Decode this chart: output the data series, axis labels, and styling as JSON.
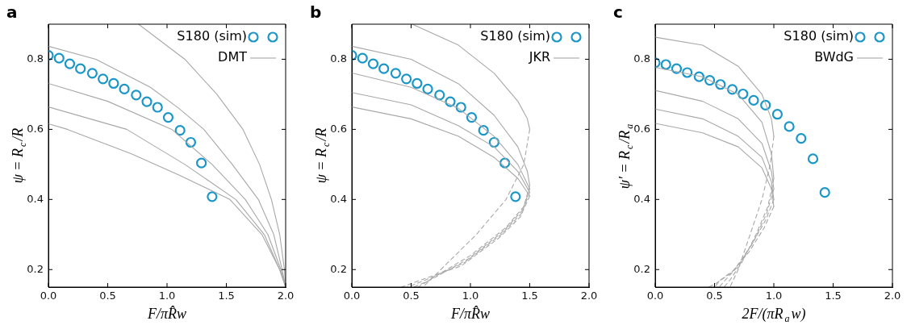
{
  "chart_data": [
    {
      "type": "line",
      "title": "a",
      "xlabel": "F/πR̂w",
      "ylabel": "ψ = R$_{c}$/R",
      "xlim": [
        0,
        2
      ],
      "ylim": [
        0.15,
        0.9
      ],
      "xticks": [
        {
          "value": 0,
          "label": "0.0"
        },
        {
          "value": 0.5,
          "label": "0.5"
        },
        {
          "value": 1,
          "label": "1.0"
        },
        {
          "value": 1.5,
          "label": "1.5"
        },
        {
          "value": 2,
          "label": "2.0"
        }
      ],
      "yticks": [
        0.2,
        0.4,
        0.6,
        0.8
      ],
      "grid": false,
      "legend": "top right",
      "series": [
        {
          "name": "S180 (sim)",
          "type": "scatter",
          "marker": "circle",
          "color": "#1a96c8",
          "x": [
            0,
            0.09,
            0.18,
            0.27,
            0.37,
            0.46,
            0.55,
            0.64,
            0.74,
            0.83,
            0.92,
            1.01,
            1.11,
            1.2,
            1.29,
            1.38
          ],
          "values": [
            0.811,
            0.803,
            0.787,
            0.773,
            0.76,
            0.744,
            0.731,
            0.715,
            0.698,
            0.679,
            0.663,
            0.634,
            0.597,
            0.563,
            0.504,
            0.408
          ]
        },
        {
          "name": "DMT",
          "type": "line",
          "color": "#a8a8a8",
          "x": [
            0.76,
            1.15,
            1.42,
            1.64,
            1.78,
            1.88,
            1.95,
            1.99,
            2.0
          ],
          "values": [
            0.9,
            0.8,
            0.7,
            0.6,
            0.5,
            0.4,
            0.3,
            0.2,
            0.15
          ]
        },
        {
          "type": "line",
          "color": "#a8a8a8",
          "x": [
            0,
            0.4,
            0.86,
            1.1,
            1.31,
            1.55,
            1.77,
            1.9,
            1.97,
            2.0
          ],
          "values": [
            0.837,
            0.8,
            0.72,
            0.66,
            0.6,
            0.5,
            0.4,
            0.3,
            0.2,
            0.15
          ]
        },
        {
          "type": "line",
          "color": "#a8a8a8",
          "x": [
            0,
            0.5,
            1.04,
            1.38,
            1.66,
            1.85,
            1.96,
            2.0
          ],
          "values": [
            0.731,
            0.68,
            0.6,
            0.5,
            0.4,
            0.3,
            0.2,
            0.15
          ]
        },
        {
          "type": "line",
          "color": "#a8a8a8",
          "x": [
            0,
            0.66,
            1.15,
            1.58,
            1.82,
            1.95,
            2.0
          ],
          "values": [
            0.664,
            0.6,
            0.5,
            0.4,
            0.3,
            0.2,
            0.15
          ]
        },
        {
          "type": "line",
          "color": "#a8a8a8",
          "x": [
            0,
            0.16,
            0.7,
            1.1,
            1.53,
            1.8,
            1.95,
            2.0
          ],
          "values": [
            0.616,
            0.6,
            0.53,
            0.47,
            0.4,
            0.3,
            0.2,
            0.15
          ]
        }
      ]
    },
    {
      "type": "line",
      "title": "b",
      "xlabel": "F/πR̂w",
      "ylabel": "ψ = R$_{c}$/R",
      "xlim": [
        0,
        2
      ],
      "ylim": [
        0.15,
        0.9
      ],
      "xticks": [
        {
          "value": 0,
          "label": "0.0"
        },
        {
          "value": 0.5,
          "label": "0.5"
        },
        {
          "value": 1,
          "label": "1.0"
        },
        {
          "value": 1.5,
          "label": "1.5"
        },
        {
          "value": 2,
          "label": "2.0"
        }
      ],
      "yticks": [
        0.2,
        0.4,
        0.6,
        0.8
      ],
      "grid": false,
      "legend": "top right",
      "series": [
        {
          "name": "S180 (sim)",
          "type": "scatter",
          "marker": "circle",
          "color": "#1a96c8",
          "x": [
            0,
            0.09,
            0.18,
            0.27,
            0.37,
            0.46,
            0.55,
            0.64,
            0.74,
            0.83,
            0.92,
            1.01,
            1.11,
            1.2,
            1.29,
            1.38
          ],
          "values": [
            0.811,
            0.803,
            0.787,
            0.773,
            0.76,
            0.744,
            0.731,
            0.715,
            0.698,
            0.679,
            0.663,
            0.634,
            0.597,
            0.563,
            0.504,
            0.408
          ]
        },
        {
          "name": "JKR",
          "type": "line",
          "color": "#a8a8a8",
          "x": [
            0.51,
            0.9,
            1.2,
            1.4,
            1.48,
            1.5
          ],
          "values": [
            0.9,
            0.84,
            0.76,
            0.68,
            0.63,
            0.6
          ]
        },
        {
          "type": "line",
          "color": "#a8a8a8",
          "x": [
            0,
            0.5,
            0.9,
            1.2,
            1.4,
            1.48,
            1.5
          ],
          "values": [
            0.837,
            0.8,
            0.73,
            0.64,
            0.55,
            0.48,
            0.44
          ]
        },
        {
          "type": "line",
          "color": "#a8a8a8",
          "x": [
            0,
            0.5,
            0.9,
            1.2,
            1.4,
            1.5
          ],
          "values": [
            0.761,
            0.72,
            0.66,
            0.58,
            0.5,
            0.43
          ]
        },
        {
          "type": "line",
          "color": "#a8a8a8",
          "x": [
            0,
            0.5,
            0.9,
            1.2,
            1.4,
            1.5
          ],
          "values": [
            0.705,
            0.67,
            0.61,
            0.55,
            0.48,
            0.42
          ]
        },
        {
          "type": "line",
          "color": "#a8a8a8",
          "x": [
            0,
            0.5,
            0.9,
            1.2,
            1.4,
            1.5
          ],
          "values": [
            0.664,
            0.63,
            0.58,
            0.52,
            0.46,
            0.41
          ]
        },
        {
          "type": "line",
          "line_style": "dashed",
          "color": "#a8a8a8",
          "x": [
            1.5,
            1.45,
            1.3,
            1.05,
            0.75,
            0.6
          ],
          "values": [
            0.6,
            0.5,
            0.4,
            0.3,
            0.2,
            0.15
          ]
        },
        {
          "type": "line",
          "line_style": "dashed",
          "color": "#a8a8a8",
          "x": [
            1.5,
            1.45,
            1.3,
            1.0,
            0.7,
            0.56
          ],
          "values": [
            0.44,
            0.38,
            0.32,
            0.24,
            0.18,
            0.15
          ]
        },
        {
          "type": "line",
          "line_style": "dashed",
          "color": "#a8a8a8",
          "x": [
            1.5,
            1.44,
            1.28,
            0.98,
            0.66,
            0.52
          ],
          "values": [
            0.43,
            0.37,
            0.31,
            0.23,
            0.17,
            0.15
          ]
        },
        {
          "type": "line",
          "line_style": "dashed",
          "color": "#a8a8a8",
          "x": [
            1.5,
            1.43,
            1.26,
            0.95,
            0.62,
            0.47
          ],
          "values": [
            0.42,
            0.36,
            0.3,
            0.22,
            0.17,
            0.15
          ]
        },
        {
          "type": "line",
          "line_style": "dashed",
          "color": "#a8a8a8",
          "x": [
            1.5,
            1.42,
            1.24,
            0.92,
            0.58,
            0.42
          ],
          "values": [
            0.41,
            0.35,
            0.29,
            0.21,
            0.17,
            0.15
          ]
        }
      ]
    },
    {
      "type": "line",
      "title": "c",
      "xlabel": "2F/(πR$_{a}$w)",
      "ylabel": "ψ′ = R$_{c}$/R$_{a}$",
      "xlim": [
        0,
        2
      ],
      "ylim": [
        0.15,
        0.9
      ],
      "xticks": [
        {
          "value": 0,
          "label": "0.0"
        },
        {
          "value": 0.5,
          "label": "0.5"
        },
        {
          "value": 1,
          "label": "1.0"
        },
        {
          "value": 1.5,
          "label": "1.5"
        },
        {
          "value": 2,
          "label": "2.0"
        }
      ],
      "yticks": [
        0.2,
        0.4,
        0.6,
        0.8
      ],
      "grid": false,
      "legend": "top right",
      "series": [
        {
          "name": "S180 (sim)",
          "type": "scatter",
          "marker": "circle",
          "color": "#1a96c8",
          "x": [
            0,
            0.09,
            0.18,
            0.27,
            0.37,
            0.46,
            0.55,
            0.65,
            0.74,
            0.83,
            0.93,
            1.03,
            1.13,
            1.23,
            1.33,
            1.43
          ],
          "values": [
            0.79,
            0.785,
            0.773,
            0.762,
            0.75,
            0.74,
            0.728,
            0.714,
            0.701,
            0.683,
            0.669,
            0.643,
            0.608,
            0.574,
            0.516,
            0.42
          ]
        },
        {
          "name": "BWdG",
          "type": "line",
          "color": "#a8a8a8",
          "x": [
            0,
            0.4,
            0.7,
            0.9,
            0.98,
            1.0
          ],
          "values": [
            0.863,
            0.84,
            0.78,
            0.7,
            0.63,
            0.58
          ]
        },
        {
          "type": "line",
          "color": "#a8a8a8",
          "x": [
            0,
            0.4,
            0.7,
            0.9,
            0.98,
            1.0
          ],
          "values": [
            0.777,
            0.75,
            0.7,
            0.62,
            0.53,
            0.46
          ]
        },
        {
          "type": "line",
          "color": "#a8a8a8",
          "x": [
            0,
            0.4,
            0.7,
            0.9,
            0.98,
            1.0
          ],
          "values": [
            0.711,
            0.68,
            0.63,
            0.56,
            0.48,
            0.43
          ]
        },
        {
          "type": "line",
          "color": "#a8a8a8",
          "x": [
            0,
            0.4,
            0.7,
            0.9,
            0.98,
            1.0
          ],
          "values": [
            0.658,
            0.63,
            0.58,
            0.52,
            0.45,
            0.4
          ]
        },
        {
          "type": "line",
          "color": "#a8a8a8",
          "x": [
            0,
            0.4,
            0.7,
            0.9,
            0.98,
            1.0
          ],
          "values": [
            0.617,
            0.59,
            0.55,
            0.49,
            0.43,
            0.38
          ]
        },
        {
          "type": "line",
          "line_style": "dashed",
          "color": "#a8a8a8",
          "x": [
            1.0,
            0.97,
            0.9,
            0.8,
            0.7,
            0.63
          ],
          "values": [
            0.58,
            0.5,
            0.4,
            0.3,
            0.2,
            0.15
          ]
        },
        {
          "type": "line",
          "line_style": "dashed",
          "color": "#a8a8a8",
          "x": [
            1.0,
            0.95,
            0.85,
            0.73,
            0.63,
            0.58
          ],
          "values": [
            0.46,
            0.38,
            0.3,
            0.22,
            0.17,
            0.15
          ]
        },
        {
          "type": "line",
          "line_style": "dashed",
          "color": "#a8a8a8",
          "x": [
            1.0,
            0.94,
            0.83,
            0.7,
            0.59,
            0.54
          ],
          "values": [
            0.43,
            0.36,
            0.28,
            0.21,
            0.17,
            0.15
          ]
        },
        {
          "type": "line",
          "line_style": "dashed",
          "color": "#a8a8a8",
          "x": [
            1.0,
            0.93,
            0.81,
            0.67,
            0.55,
            0.5
          ],
          "values": [
            0.4,
            0.34,
            0.27,
            0.2,
            0.17,
            0.15
          ]
        },
        {
          "type": "line",
          "line_style": "dashed",
          "color": "#a8a8a8",
          "x": [
            1.0,
            0.92,
            0.79,
            0.64,
            0.51,
            0.45
          ],
          "values": [
            0.38,
            0.32,
            0.25,
            0.19,
            0.16,
            0.15
          ]
        }
      ]
    }
  ]
}
